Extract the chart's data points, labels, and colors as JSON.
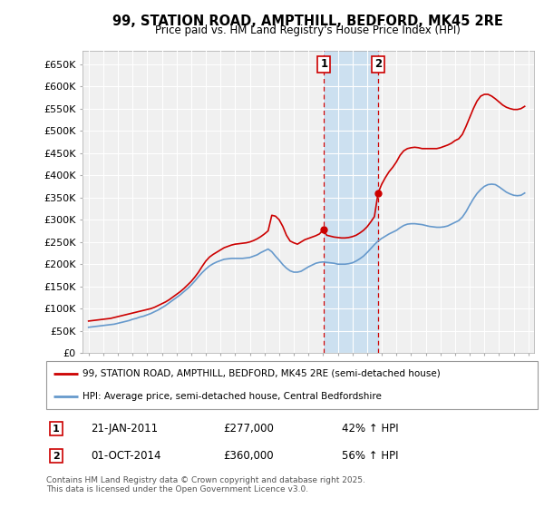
{
  "title": "99, STATION ROAD, AMPTHILL, BEDFORD, MK45 2RE",
  "subtitle": "Price paid vs. HM Land Registry's House Price Index (HPI)",
  "ylim": [
    0,
    680000
  ],
  "yticks": [
    0,
    50000,
    100000,
    150000,
    200000,
    250000,
    300000,
    350000,
    400000,
    450000,
    500000,
    550000,
    600000,
    650000
  ],
  "ytick_labels": [
    "£0",
    "£50K",
    "£100K",
    "£150K",
    "£200K",
    "£250K",
    "£300K",
    "£350K",
    "£400K",
    "£450K",
    "£500K",
    "£550K",
    "£600K",
    "£650K"
  ],
  "background_color": "#ffffff",
  "plot_bg_color": "#f0f0f0",
  "grid_color": "#ffffff",
  "sale1_date": "21-JAN-2011",
  "sale1_price": 277000,
  "sale1_label": "42% ↑ HPI",
  "sale1_x": 2011.055,
  "sale2_date": "01-OCT-2014",
  "sale2_price": 360000,
  "sale2_label": "56% ↑ HPI",
  "sale2_x": 2014.75,
  "red_line_color": "#cc0000",
  "blue_line_color": "#6699cc",
  "dashed_line_color": "#cc0000",
  "shade_color": "#cce0f0",
  "legend1_label": "99, STATION ROAD, AMPTHILL, BEDFORD, MK45 2RE (semi-detached house)",
  "legend2_label": "HPI: Average price, semi-detached house, Central Bedfordshire",
  "annotation1": "1",
  "annotation2": "2",
  "footer": "Contains HM Land Registry data © Crown copyright and database right 2025.\nThis data is licensed under the Open Government Licence v3.0.",
  "red_data": [
    [
      1995.0,
      72000
    ],
    [
      1995.25,
      73000
    ],
    [
      1995.5,
      74000
    ],
    [
      1995.75,
      75000
    ],
    [
      1996.0,
      76000
    ],
    [
      1996.25,
      77000
    ],
    [
      1996.5,
      78000
    ],
    [
      1996.75,
      80000
    ],
    [
      1997.0,
      82000
    ],
    [
      1997.25,
      84000
    ],
    [
      1997.5,
      86000
    ],
    [
      1997.75,
      88000
    ],
    [
      1998.0,
      90000
    ],
    [
      1998.25,
      92000
    ],
    [
      1998.5,
      94000
    ],
    [
      1998.75,
      96000
    ],
    [
      1999.0,
      98000
    ],
    [
      1999.25,
      100000
    ],
    [
      1999.5,
      103000
    ],
    [
      1999.75,
      107000
    ],
    [
      2000.0,
      111000
    ],
    [
      2000.25,
      115000
    ],
    [
      2000.5,
      120000
    ],
    [
      2000.75,
      126000
    ],
    [
      2001.0,
      132000
    ],
    [
      2001.25,
      138000
    ],
    [
      2001.5,
      145000
    ],
    [
      2001.75,
      153000
    ],
    [
      2002.0,
      161000
    ],
    [
      2002.25,
      171000
    ],
    [
      2002.5,
      182000
    ],
    [
      2002.75,
      195000
    ],
    [
      2003.0,
      207000
    ],
    [
      2003.25,
      216000
    ],
    [
      2003.5,
      222000
    ],
    [
      2003.75,
      227000
    ],
    [
      2004.0,
      232000
    ],
    [
      2004.25,
      237000
    ],
    [
      2004.5,
      240000
    ],
    [
      2004.75,
      243000
    ],
    [
      2005.0,
      245000
    ],
    [
      2005.25,
      246000
    ],
    [
      2005.5,
      247000
    ],
    [
      2005.75,
      248000
    ],
    [
      2006.0,
      250000
    ],
    [
      2006.25,
      253000
    ],
    [
      2006.5,
      257000
    ],
    [
      2006.75,
      262000
    ],
    [
      2007.0,
      268000
    ],
    [
      2007.25,
      275000
    ],
    [
      2007.5,
      310000
    ],
    [
      2007.75,
      308000
    ],
    [
      2008.0,
      300000
    ],
    [
      2008.25,
      285000
    ],
    [
      2008.5,
      265000
    ],
    [
      2008.75,
      252000
    ],
    [
      2009.0,
      248000
    ],
    [
      2009.25,
      245000
    ],
    [
      2009.5,
      250000
    ],
    [
      2009.75,
      255000
    ],
    [
      2010.0,
      258000
    ],
    [
      2010.25,
      261000
    ],
    [
      2010.5,
      264000
    ],
    [
      2010.75,
      268000
    ],
    [
      2011.0,
      277000
    ],
    [
      2011.25,
      265000
    ],
    [
      2011.5,
      263000
    ],
    [
      2011.75,
      261000
    ],
    [
      2012.0,
      260000
    ],
    [
      2012.25,
      259000
    ],
    [
      2012.5,
      259000
    ],
    [
      2012.75,
      260000
    ],
    [
      2013.0,
      262000
    ],
    [
      2013.25,
      265000
    ],
    [
      2013.5,
      270000
    ],
    [
      2013.75,
      276000
    ],
    [
      2014.0,
      284000
    ],
    [
      2014.25,
      295000
    ],
    [
      2014.5,
      307000
    ],
    [
      2014.75,
      360000
    ],
    [
      2015.0,
      380000
    ],
    [
      2015.25,
      395000
    ],
    [
      2015.5,
      408000
    ],
    [
      2015.75,
      418000
    ],
    [
      2016.0,
      430000
    ],
    [
      2016.25,
      445000
    ],
    [
      2016.5,
      455000
    ],
    [
      2016.75,
      460000
    ],
    [
      2017.0,
      462000
    ],
    [
      2017.25,
      463000
    ],
    [
      2017.5,
      462000
    ],
    [
      2017.75,
      460000
    ],
    [
      2018.0,
      460000
    ],
    [
      2018.25,
      460000
    ],
    [
      2018.5,
      460000
    ],
    [
      2018.75,
      460000
    ],
    [
      2019.0,
      462000
    ],
    [
      2019.25,
      465000
    ],
    [
      2019.5,
      468000
    ],
    [
      2019.75,
      472000
    ],
    [
      2020.0,
      478000
    ],
    [
      2020.25,
      482000
    ],
    [
      2020.5,
      492000
    ],
    [
      2020.75,
      510000
    ],
    [
      2021.0,
      530000
    ],
    [
      2021.25,
      550000
    ],
    [
      2021.5,
      567000
    ],
    [
      2021.75,
      578000
    ],
    [
      2022.0,
      582000
    ],
    [
      2022.25,
      582000
    ],
    [
      2022.5,
      578000
    ],
    [
      2022.75,
      572000
    ],
    [
      2023.0,
      565000
    ],
    [
      2023.25,
      558000
    ],
    [
      2023.5,
      553000
    ],
    [
      2023.75,
      550000
    ],
    [
      2024.0,
      548000
    ],
    [
      2024.25,
      548000
    ],
    [
      2024.5,
      550000
    ],
    [
      2024.75,
      555000
    ]
  ],
  "blue_data": [
    [
      1995.0,
      58000
    ],
    [
      1995.25,
      59000
    ],
    [
      1995.5,
      60000
    ],
    [
      1995.75,
      61000
    ],
    [
      1996.0,
      62000
    ],
    [
      1996.25,
      63000
    ],
    [
      1996.5,
      64000
    ],
    [
      1996.75,
      65000
    ],
    [
      1997.0,
      67000
    ],
    [
      1997.25,
      69000
    ],
    [
      1997.5,
      71000
    ],
    [
      1997.75,
      73000
    ],
    [
      1998.0,
      76000
    ],
    [
      1998.25,
      78000
    ],
    [
      1998.5,
      81000
    ],
    [
      1998.75,
      83000
    ],
    [
      1999.0,
      86000
    ],
    [
      1999.25,
      89000
    ],
    [
      1999.5,
      93000
    ],
    [
      1999.75,
      97000
    ],
    [
      2000.0,
      102000
    ],
    [
      2000.25,
      107000
    ],
    [
      2000.5,
      113000
    ],
    [
      2000.75,
      119000
    ],
    [
      2001.0,
      125000
    ],
    [
      2001.25,
      131000
    ],
    [
      2001.5,
      138000
    ],
    [
      2001.75,
      145000
    ],
    [
      2002.0,
      153000
    ],
    [
      2002.25,
      162000
    ],
    [
      2002.5,
      172000
    ],
    [
      2002.75,
      181000
    ],
    [
      2003.0,
      189000
    ],
    [
      2003.25,
      196000
    ],
    [
      2003.5,
      201000
    ],
    [
      2003.75,
      205000
    ],
    [
      2004.0,
      208000
    ],
    [
      2004.25,
      211000
    ],
    [
      2004.5,
      212000
    ],
    [
      2004.75,
      213000
    ],
    [
      2005.0,
      213000
    ],
    [
      2005.25,
      213000
    ],
    [
      2005.5,
      213000
    ],
    [
      2005.75,
      214000
    ],
    [
      2006.0,
      215000
    ],
    [
      2006.25,
      218000
    ],
    [
      2006.5,
      221000
    ],
    [
      2006.75,
      226000
    ],
    [
      2007.0,
      230000
    ],
    [
      2007.25,
      234000
    ],
    [
      2007.5,
      228000
    ],
    [
      2007.75,
      218000
    ],
    [
      2008.0,
      209000
    ],
    [
      2008.25,
      199000
    ],
    [
      2008.5,
      191000
    ],
    [
      2008.75,
      185000
    ],
    [
      2009.0,
      182000
    ],
    [
      2009.25,
      182000
    ],
    [
      2009.5,
      184000
    ],
    [
      2009.75,
      189000
    ],
    [
      2010.0,
      194000
    ],
    [
      2010.25,
      198000
    ],
    [
      2010.5,
      202000
    ],
    [
      2010.75,
      204000
    ],
    [
      2011.0,
      205000
    ],
    [
      2011.25,
      204000
    ],
    [
      2011.5,
      203000
    ],
    [
      2011.75,
      202000
    ],
    [
      2012.0,
      200000
    ],
    [
      2012.25,
      200000
    ],
    [
      2012.5,
      200000
    ],
    [
      2012.75,
      201000
    ],
    [
      2013.0,
      203000
    ],
    [
      2013.25,
      207000
    ],
    [
      2013.5,
      212000
    ],
    [
      2013.75,
      218000
    ],
    [
      2014.0,
      226000
    ],
    [
      2014.25,
      235000
    ],
    [
      2014.5,
      244000
    ],
    [
      2014.75,
      252000
    ],
    [
      2015.0,
      258000
    ],
    [
      2015.25,
      263000
    ],
    [
      2015.5,
      268000
    ],
    [
      2015.75,
      272000
    ],
    [
      2016.0,
      276000
    ],
    [
      2016.25,
      282000
    ],
    [
      2016.5,
      287000
    ],
    [
      2016.75,
      290000
    ],
    [
      2017.0,
      291000
    ],
    [
      2017.25,
      291000
    ],
    [
      2017.5,
      290000
    ],
    [
      2017.75,
      289000
    ],
    [
      2018.0,
      287000
    ],
    [
      2018.25,
      285000
    ],
    [
      2018.5,
      284000
    ],
    [
      2018.75,
      283000
    ],
    [
      2019.0,
      283000
    ],
    [
      2019.25,
      284000
    ],
    [
      2019.5,
      286000
    ],
    [
      2019.75,
      290000
    ],
    [
      2020.0,
      294000
    ],
    [
      2020.25,
      298000
    ],
    [
      2020.5,
      306000
    ],
    [
      2020.75,
      318000
    ],
    [
      2021.0,
      333000
    ],
    [
      2021.25,
      347000
    ],
    [
      2021.5,
      359000
    ],
    [
      2021.75,
      368000
    ],
    [
      2022.0,
      375000
    ],
    [
      2022.25,
      379000
    ],
    [
      2022.5,
      380000
    ],
    [
      2022.75,
      379000
    ],
    [
      2023.0,
      374000
    ],
    [
      2023.25,
      368000
    ],
    [
      2023.5,
      362000
    ],
    [
      2023.75,
      358000
    ],
    [
      2024.0,
      355000
    ],
    [
      2024.25,
      354000
    ],
    [
      2024.5,
      355000
    ],
    [
      2024.75,
      360000
    ]
  ]
}
